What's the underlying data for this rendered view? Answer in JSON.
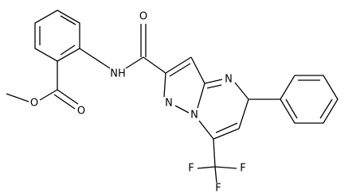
{
  "atoms": {
    "ester_o_single": "O",
    "ester_o_double": "O",
    "amide_nh": "NH",
    "amide_o": "O",
    "pyrazole_n": "N",
    "bridge_n": "N",
    "pyrimidine_n": "N",
    "f_left": "F",
    "f_bottom": "F",
    "f_right": "F"
  }
}
